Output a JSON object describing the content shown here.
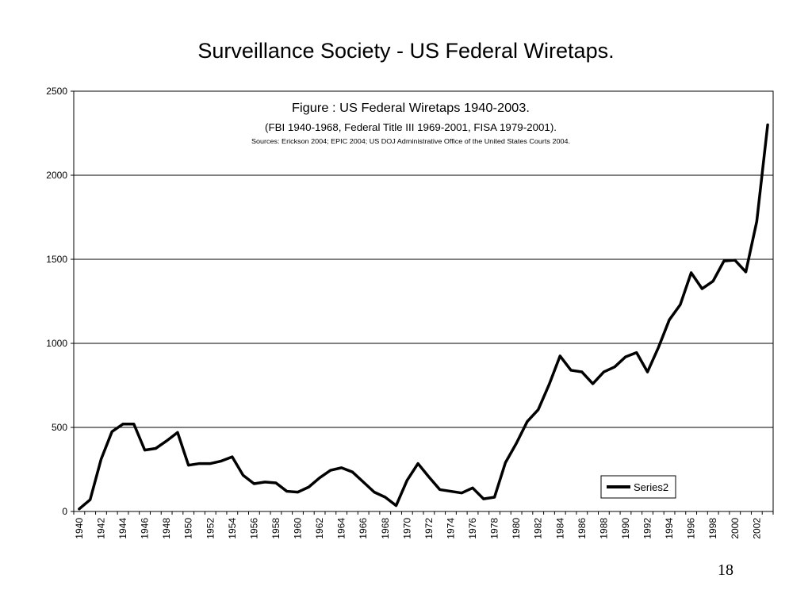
{
  "slide": {
    "title": "Surveillance Society - US Federal Wiretaps.",
    "page_number": "18"
  },
  "chart_data": {
    "type": "line",
    "title": "",
    "annotations": [
      "Figure : US Federal Wiretaps 1940-2003.",
      "(FBI 1940-1968, Federal Title III 1969-2001, FISA 1979-2001).",
      "Sources: Erickson 2004; EPIC 2004; US DOJ Administrative Office of the United States Courts 2004."
    ],
    "xlabel": "",
    "ylabel": "",
    "ylim": [
      0,
      2500
    ],
    "y_ticks": [
      0,
      500,
      1000,
      1500,
      2000,
      2500
    ],
    "x_tick_labels": [
      "1940",
      "1942",
      "1944",
      "1946",
      "1948",
      "1950",
      "1952",
      "1954",
      "1956",
      "1958",
      "1960",
      "1962",
      "1964",
      "1966",
      "1968",
      "1970",
      "1972",
      "1974",
      "1976",
      "1978",
      "1980",
      "1982",
      "1984",
      "1986",
      "1988",
      "1990",
      "1992",
      "1994",
      "1996",
      "1998",
      "2000",
      "2002"
    ],
    "grid": "horizontal",
    "legend_position": "bottom-right",
    "series": [
      {
        "name": "Series2",
        "color": "#000000",
        "x": [
          1940,
          1941,
          1942,
          1943,
          1944,
          1945,
          1946,
          1947,
          1948,
          1949,
          1950,
          1951,
          1952,
          1953,
          1954,
          1955,
          1956,
          1957,
          1958,
          1959,
          1960,
          1961,
          1962,
          1963,
          1964,
          1965,
          1966,
          1967,
          1968,
          1969,
          1970,
          1971,
          1972,
          1973,
          1974,
          1975,
          1976,
          1977,
          1978,
          1979,
          1980,
          1981,
          1982,
          1983,
          1984,
          1985,
          1986,
          1987,
          1988,
          1989,
          1990,
          1991,
          1992,
          1993,
          1994,
          1995,
          1996,
          1997,
          1998,
          1999,
          2000,
          2001,
          2002,
          2003
        ],
        "values": [
          15,
          70,
          310,
          475,
          520,
          520,
          365,
          375,
          420,
          470,
          275,
          285,
          285,
          300,
          325,
          215,
          165,
          175,
          170,
          120,
          115,
          145,
          200,
          245,
          260,
          235,
          175,
          115,
          85,
          35,
          185,
          285,
          205,
          130,
          120,
          110,
          140,
          75,
          85,
          290,
          405,
          535,
          605,
          755,
          925,
          840,
          830,
          760,
          830,
          860,
          920,
          945,
          830,
          975,
          1140,
          1230,
          1420,
          1325,
          1370,
          1490,
          1495,
          1425,
          1725,
          2300
        ]
      }
    ]
  }
}
